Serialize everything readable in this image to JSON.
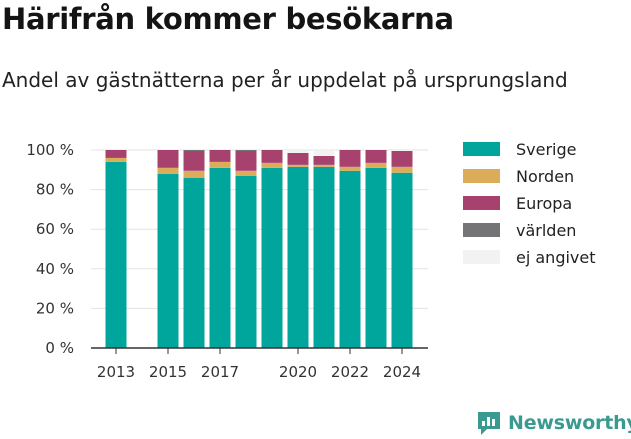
{
  "header": {
    "title": "Härifrån kommer besökarna",
    "subtitle": "Andel av gästnätterna per år uppdelat på ursprungsland"
  },
  "brand": {
    "name": "Newsworthy",
    "logo_icon": "bar-chart-speech-bubble-icon",
    "color": "#3a9a8f"
  },
  "chart_data": {
    "type": "bar",
    "stacked": true,
    "categories": [
      "2013",
      "2014",
      "2015",
      "2016",
      "2017",
      "2018",
      "2019",
      "2020",
      "2021",
      "2022",
      "2023",
      "2024"
    ],
    "x_ticks": [
      "2013",
      "2015",
      "2017",
      "2020",
      "2022",
      "2024"
    ],
    "y_ticks": [
      "0 %",
      "20 %",
      "40 %",
      "60 %",
      "80 %",
      "100 %"
    ],
    "ylim": [
      0,
      100
    ],
    "grid": true,
    "legend_position": "right",
    "series": [
      {
        "name": "Sverige",
        "color": "#00a59b",
        "values": [
          94,
          null,
          88,
          86,
          91,
          87,
          91,
          91.5,
          91.5,
          89.5,
          91,
          88.5
        ]
      },
      {
        "name": "Norden",
        "color": "#dbad5a",
        "values": [
          2,
          null,
          3,
          3.5,
          3,
          2.5,
          2.5,
          1,
          1,
          2,
          2.5,
          3
        ]
      },
      {
        "name": "Europa",
        "color": "#a7416d",
        "values": [
          4,
          null,
          9,
          10,
          6,
          10,
          6.5,
          6,
          4.5,
          8.5,
          6.5,
          8
        ]
      },
      {
        "name": "världen",
        "color": "#747476",
        "values": [
          0,
          null,
          0,
          0.5,
          0,
          0.5,
          0,
          0,
          0,
          0,
          0,
          0
        ]
      },
      {
        "name": "ej angivet",
        "color": "#f2f2f2",
        "values": [
          0,
          null,
          0,
          0,
          0,
          0,
          0,
          1,
          3,
          0,
          0,
          0.5
        ]
      }
    ]
  }
}
